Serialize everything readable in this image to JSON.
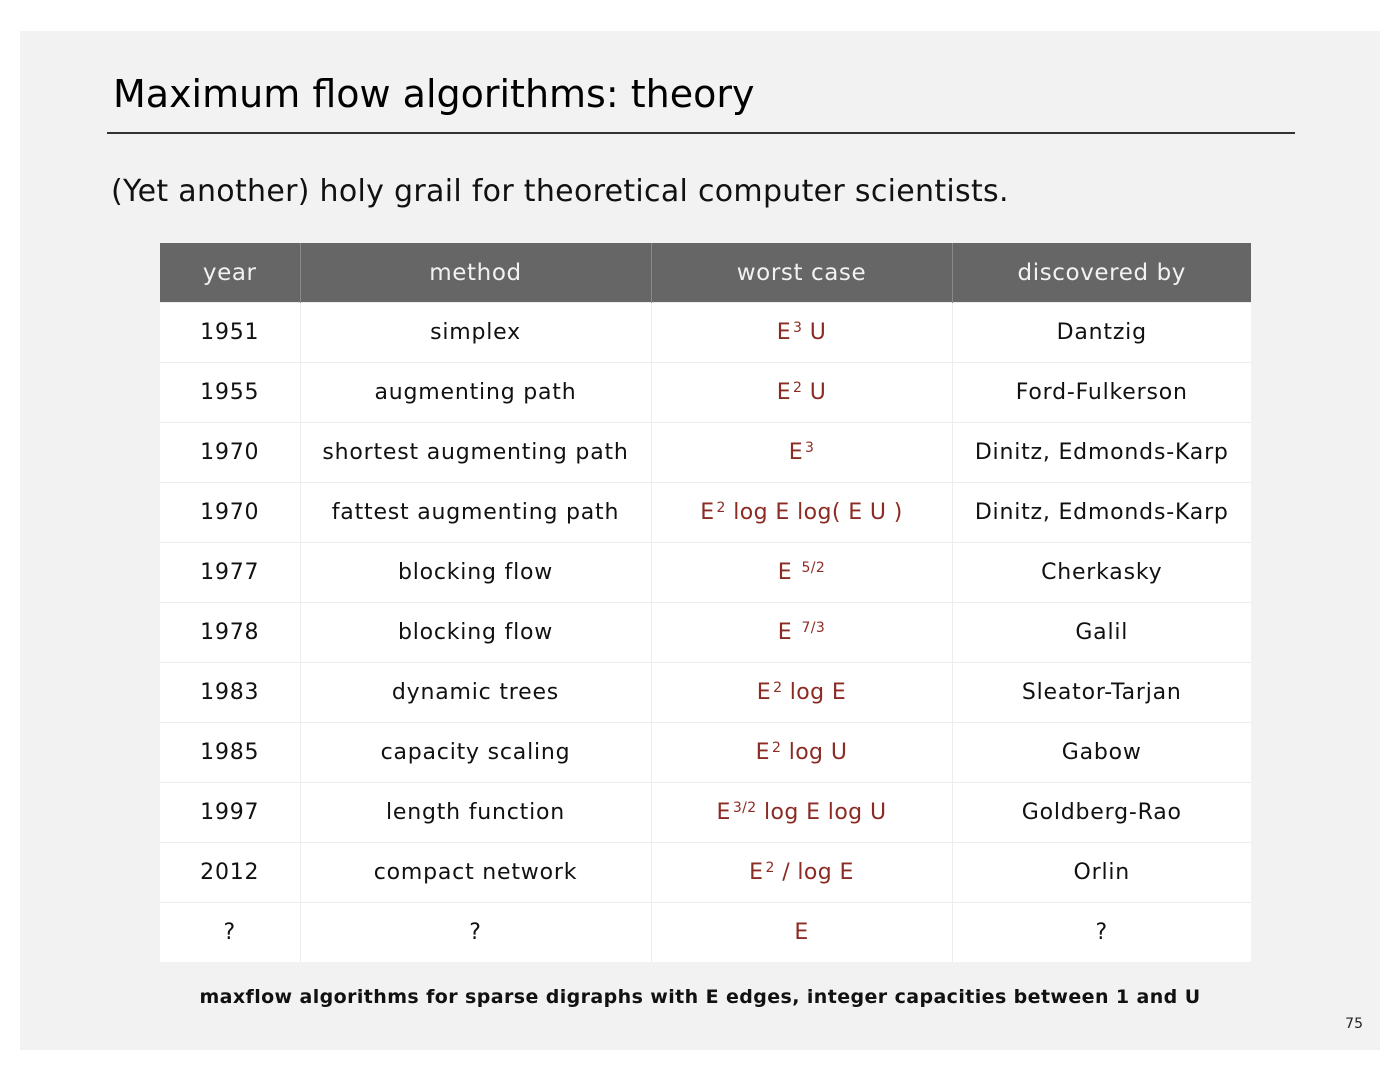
{
  "slide": {
    "title": "Maximum flow algorithms: theory",
    "subtitle": "(Yet another) holy grail for theoretical computer scientists.",
    "caption": "maxflow algorithms for sparse digraphs with E edges, integer capacities between 1 and U",
    "page_number": "75"
  },
  "table": {
    "headers": [
      "year",
      "method",
      "worst case",
      "discovered by"
    ],
    "rows": [
      {
        "year": "1951",
        "method": "simplex",
        "worst_case": {
          "base": "E",
          "sup": "3",
          "rest": " U"
        },
        "discovered_by": "Dantzig"
      },
      {
        "year": "1955",
        "method": "augmenting path",
        "worst_case": {
          "base": "E",
          "sup": "2",
          "rest": " U"
        },
        "discovered_by": "Ford-Fulkerson"
      },
      {
        "year": "1970",
        "method": "shortest augmenting path",
        "worst_case": {
          "base": "E",
          "sup": "3",
          "rest": ""
        },
        "discovered_by": "Dinitz, Edmonds-Karp"
      },
      {
        "year": "1970",
        "method": "fattest augmenting path",
        "worst_case": {
          "base": "E",
          "sup": "2",
          "rest": " log E log( E U )"
        },
        "discovered_by": "Dinitz, Edmonds-Karp"
      },
      {
        "year": "1977",
        "method": "blocking flow",
        "worst_case": {
          "base": "E ",
          "sup": "5/2",
          "rest": ""
        },
        "discovered_by": "Cherkasky"
      },
      {
        "year": "1978",
        "method": "blocking flow",
        "worst_case": {
          "base": "E ",
          "sup": "7/3",
          "rest": ""
        },
        "discovered_by": "Galil"
      },
      {
        "year": "1983",
        "method": "dynamic trees",
        "worst_case": {
          "base": "E",
          "sup": "2",
          "rest": " log E"
        },
        "discovered_by": "Sleator-Tarjan"
      },
      {
        "year": "1985",
        "method": "capacity scaling",
        "worst_case": {
          "base": "E",
          "sup": "2",
          "rest": " log U"
        },
        "discovered_by": "Gabow"
      },
      {
        "year": "1997",
        "method": "length function",
        "worst_case": {
          "base": "E",
          "sup": "3/2",
          "rest": " log E log U"
        },
        "discovered_by": "Goldberg-Rao"
      },
      {
        "year": "2012",
        "method": "compact network",
        "worst_case": {
          "base": "E",
          "sup": "2",
          "rest": " / log E"
        },
        "discovered_by": "Orlin"
      },
      {
        "year": "?",
        "method": "?",
        "worst_case": {
          "base": "E",
          "sup": "",
          "rest": ""
        },
        "discovered_by": "?"
      }
    ]
  },
  "colors": {
    "slide_background": "#f2f2f2",
    "header_background": "#666666",
    "worst_case_text": "#8b2b24"
  }
}
